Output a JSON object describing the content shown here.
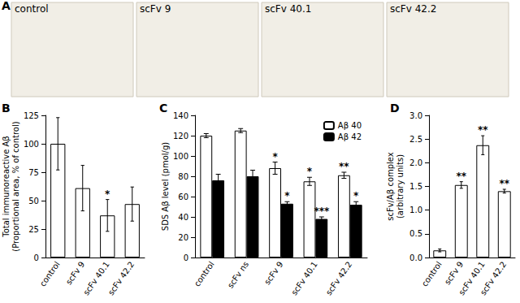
{
  "chart_data": [
    {
      "type": "image",
      "title": "A",
      "categories": [
        "control",
        "scFv 9",
        "scFv 40.1",
        "scFv 42.2"
      ]
    },
    {
      "type": "bar",
      "title": "B",
      "y_label": "Total immunoreactive Aβ\n(Proportional area, % of control)",
      "categories": [
        "control",
        "scFv 9",
        "scFv 40.1",
        "scFv 42.2"
      ],
      "values": [
        100,
        61,
        37,
        47
      ],
      "errors": [
        23,
        20,
        14,
        15
      ],
      "significance": [
        null,
        null,
        "*",
        null
      ],
      "color": "#ffffff",
      "ylim": [
        0,
        125
      ],
      "yticks": [
        0,
        25,
        50,
        75,
        100,
        125
      ],
      "grid": false
    },
    {
      "type": "bar",
      "title": "C",
      "y_label": "SDS Aβ level (pmol/g)",
      "categories": [
        "control",
        "scFv ns",
        "scFv 9",
        "scFv 40.1",
        "scFv 42.2"
      ],
      "series": [
        {
          "name": "Aβ 40",
          "color": "#ffffff",
          "values": [
            120,
            125,
            88,
            75,
            81
          ],
          "errors": [
            2,
            2,
            6,
            4,
            3
          ],
          "significance": [
            null,
            null,
            "*",
            "*",
            "**"
          ]
        },
        {
          "name": "Aβ 42",
          "color": "#000000",
          "values": [
            76,
            80,
            53,
            38,
            52
          ],
          "errors": [
            6,
            6,
            2,
            2,
            3
          ],
          "significance": [
            null,
            null,
            "*",
            "***",
            "*"
          ]
        }
      ],
      "legend": "upper right",
      "ylim": [
        0,
        140
      ],
      "yticks": [
        0,
        20,
        40,
        60,
        80,
        100,
        120,
        140
      ],
      "grid": false
    },
    {
      "type": "bar",
      "title": "D",
      "y_label": "scFv/Aβ complex\n(arbitrary units)",
      "categories": [
        "control",
        "scFv 9",
        "scFv 40.1",
        "scFv 42.2"
      ],
      "values": [
        0.15,
        1.53,
        2.37,
        1.4
      ],
      "errors": [
        0.03,
        0.07,
        0.2,
        0.04
      ],
      "significance": [
        null,
        "**",
        "**",
        "**"
      ],
      "color": "#ffffff",
      "ylim": [
        0,
        3.0
      ],
      "yticks": [
        {
          "value": 0,
          "label": "0.0"
        },
        0.5,
        {
          "value": 1,
          "label": "1.0"
        },
        1.5,
        {
          "value": 2,
          "label": "2.0"
        },
        2.5,
        {
          "value": 3,
          "label": "3.0"
        }
      ],
      "grid": false
    }
  ]
}
